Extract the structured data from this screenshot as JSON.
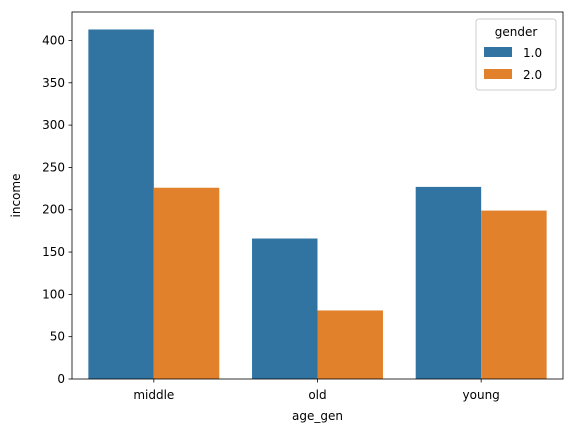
{
  "chart_data": {
    "type": "bar",
    "xlabel": "age_gen",
    "ylabel": "income",
    "categories": [
      "middle",
      "old",
      "young"
    ],
    "series": [
      {
        "name": "1.0",
        "color": "#3274a1",
        "values": [
          413,
          166,
          227
        ]
      },
      {
        "name": "2.0",
        "color": "#e1812c",
        "values": [
          226,
          81,
          199
        ]
      }
    ],
    "ylim": [
      0,
      433.65
    ],
    "yticks": [
      0,
      50,
      100,
      150,
      200,
      250,
      300,
      350,
      400
    ],
    "legend": {
      "title": "gender",
      "placement": "top-right"
    },
    "grid": false
  }
}
